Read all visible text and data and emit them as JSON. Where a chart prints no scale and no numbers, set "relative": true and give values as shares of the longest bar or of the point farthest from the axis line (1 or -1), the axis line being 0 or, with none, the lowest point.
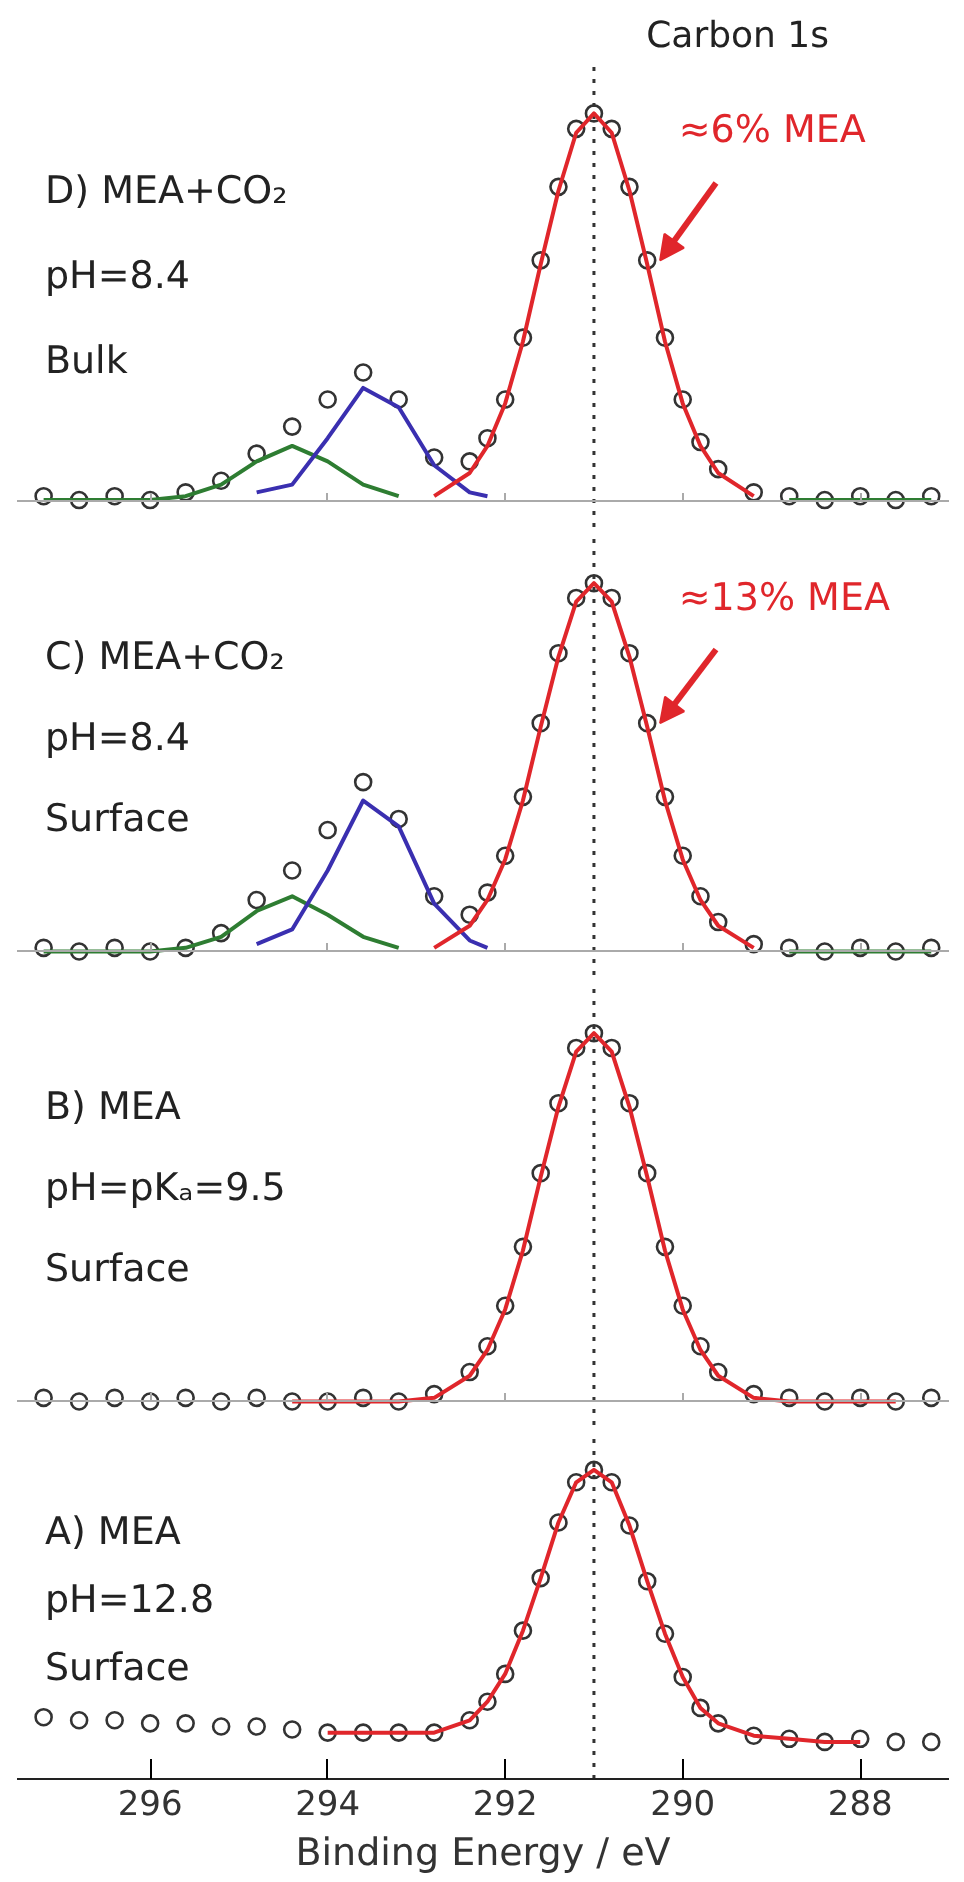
{
  "chart_data": [
    {
      "type": "line",
      "relative": true,
      "title": "Carbon 1s",
      "tick_labels": false,
      "xlim": [
        297.5,
        287
      ],
      "xticks": [
        296,
        294,
        292,
        290,
        288
      ],
      "x": [
        297.2,
        296.8,
        296.4,
        296.0,
        295.6,
        295.2,
        294.8,
        294.4,
        294.0,
        293.6,
        293.2,
        292.8,
        292.4,
        292.2,
        292.0,
        291.8,
        291.6,
        291.4,
        291.2,
        291.0,
        290.8,
        290.6,
        290.4,
        290.2,
        290.0,
        289.8,
        289.6,
        289.2,
        288.8,
        288.4,
        288.0,
        287.6,
        287.2
      ],
      "series": [
        {
          "type": "scatter",
          "marker": "circle",
          "color": "#333333",
          "values": [
            0.01,
            0,
            0.01,
            0,
            0.02,
            0.05,
            0.12,
            0.19,
            0.26,
            0.33,
            0.26,
            0.11,
            0.1,
            0.16,
            0.26,
            0.42,
            0.62,
            0.81,
            0.96,
            1,
            0.96,
            0.81,
            0.62,
            0.42,
            0.26,
            0.15,
            0.08,
            0.02,
            0.01,
            0,
            0.01,
            0,
            0.01
          ]
        },
        {
          "color": "#2e7d32",
          "values": [
            0,
            0,
            0,
            0,
            0.01,
            0.04,
            0.1,
            0.14,
            0.1,
            0.04,
            0.01,
            null,
            null,
            null,
            null,
            null,
            null,
            null,
            null,
            null,
            null,
            null,
            null,
            null,
            null,
            null,
            null,
            null,
            0,
            0,
            0,
            0,
            0
          ]
        },
        {
          "color": "#3a2fb0",
          "values": [
            null,
            null,
            null,
            null,
            null,
            null,
            0.02,
            0.04,
            0.16,
            0.29,
            0.24,
            0.09,
            0.02,
            0.01,
            null,
            null,
            null,
            null,
            null,
            null,
            null,
            null,
            null,
            null,
            null,
            null,
            null,
            null,
            null,
            null,
            null,
            null,
            null
          ]
        },
        {
          "color": "#e0262b",
          "values": [
            null,
            null,
            null,
            null,
            null,
            null,
            null,
            null,
            null,
            null,
            null,
            0.01,
            0.07,
            0.14,
            0.25,
            0.41,
            0.61,
            0.8,
            0.95,
            1,
            0.95,
            0.8,
            0.61,
            0.41,
            0.25,
            0.14,
            0.07,
            0.01,
            null,
            null,
            null,
            null,
            null
          ]
        }
      ],
      "ref_lines": [
        {
          "axis": "x",
          "value": 291,
          "line_style": "dotted",
          "color": "#333333"
        }
      ],
      "annotations": [
        "D) MEA+CO₂",
        "pH=8.4",
        "Bulk",
        "≈6% MEA"
      ]
    },
    {
      "type": "line",
      "relative": true,
      "tick_labels": false,
      "xlim": [
        297.5,
        287
      ],
      "xticks": [
        296,
        294,
        292,
        290,
        288
      ],
      "x": [
        297.2,
        296.8,
        296.4,
        296.0,
        295.6,
        295.2,
        294.8,
        294.4,
        294.0,
        293.6,
        293.2,
        292.8,
        292.4,
        292.2,
        292.0,
        291.8,
        291.6,
        291.4,
        291.2,
        291.0,
        290.8,
        290.6,
        290.4,
        290.2,
        290.0,
        289.8,
        289.6,
        289.2,
        288.8,
        288.4,
        288.0,
        287.6,
        287.2
      ],
      "series": [
        {
          "type": "scatter",
          "marker": "circle",
          "color": "#333333",
          "values": [
            0.01,
            0,
            0.01,
            0,
            0.01,
            0.05,
            0.14,
            0.22,
            0.33,
            0.46,
            0.36,
            0.15,
            0.1,
            0.16,
            0.26,
            0.42,
            0.62,
            0.81,
            0.96,
            1,
            0.96,
            0.81,
            0.62,
            0.42,
            0.26,
            0.15,
            0.08,
            0.02,
            0.01,
            0,
            0.01,
            0,
            0.01
          ]
        },
        {
          "color": "#2e7d32",
          "values": [
            0,
            0,
            0,
            0,
            0.01,
            0.04,
            0.11,
            0.15,
            0.1,
            0.04,
            0.01,
            null,
            null,
            null,
            null,
            null,
            null,
            null,
            null,
            null,
            null,
            null,
            null,
            null,
            null,
            null,
            null,
            null,
            0,
            0,
            0,
            0,
            0
          ]
        },
        {
          "color": "#3a2fb0",
          "values": [
            null,
            null,
            null,
            null,
            null,
            null,
            0.02,
            0.06,
            0.22,
            0.41,
            0.34,
            0.13,
            0.03,
            0.01,
            null,
            null,
            null,
            null,
            null,
            null,
            null,
            null,
            null,
            null,
            null,
            null,
            null,
            null,
            null,
            null,
            null,
            null,
            null
          ]
        },
        {
          "color": "#e0262b",
          "values": [
            null,
            null,
            null,
            null,
            null,
            null,
            null,
            null,
            null,
            null,
            null,
            0.01,
            0.07,
            0.14,
            0.25,
            0.41,
            0.61,
            0.8,
            0.95,
            1,
            0.95,
            0.8,
            0.61,
            0.41,
            0.25,
            0.14,
            0.07,
            0.01,
            null,
            null,
            null,
            null,
            null
          ]
        }
      ],
      "ref_lines": [
        {
          "axis": "x",
          "value": 291,
          "line_style": "dotted",
          "color": "#333333"
        }
      ],
      "annotations": [
        "C) MEA+CO₂",
        "pH=8.4",
        "Surface",
        "≈13% MEA"
      ]
    },
    {
      "type": "line",
      "relative": true,
      "tick_labels": false,
      "xlim": [
        297.5,
        287
      ],
      "xticks": [
        296,
        294,
        292,
        290,
        288
      ],
      "x": [
        297.2,
        296.8,
        296.4,
        296.0,
        295.6,
        295.2,
        294.8,
        294.4,
        294.0,
        293.6,
        293.2,
        292.8,
        292.4,
        292.2,
        292.0,
        291.8,
        291.6,
        291.4,
        291.2,
        291.0,
        290.8,
        290.6,
        290.4,
        290.2,
        290.0,
        289.8,
        289.6,
        289.2,
        288.8,
        288.4,
        288.0,
        287.6,
        287.2
      ],
      "series": [
        {
          "type": "scatter",
          "marker": "circle",
          "color": "#333333",
          "values": [
            0.01,
            0,
            0.01,
            0,
            0.01,
            0,
            0.01,
            0,
            0,
            0.01,
            0,
            0.02,
            0.08,
            0.15,
            0.26,
            0.42,
            0.62,
            0.81,
            0.96,
            1,
            0.96,
            0.81,
            0.62,
            0.42,
            0.26,
            0.15,
            0.08,
            0.02,
            0.01,
            0,
            0.01,
            0,
            0.01
          ]
        },
        {
          "color": "#e0262b",
          "values": [
            null,
            null,
            null,
            null,
            null,
            null,
            null,
            0,
            0,
            0,
            0,
            0.01,
            0.07,
            0.14,
            0.25,
            0.41,
            0.61,
            0.8,
            0.95,
            1,
            0.95,
            0.8,
            0.61,
            0.41,
            0.25,
            0.14,
            0.07,
            0.01,
            0,
            0,
            0,
            0,
            null
          ]
        }
      ],
      "ref_lines": [
        {
          "axis": "x",
          "value": 291,
          "line_style": "dotted",
          "color": "#333333"
        }
      ],
      "annotations": [
        "B) MEA",
        "pH=pKₐ=9.5",
        "Surface"
      ]
    },
    {
      "type": "line",
      "relative": true,
      "tick_labels": "x",
      "xlim": [
        297.5,
        287
      ],
      "xlabel": "Binding Energy / eV",
      "xticks": [
        296,
        294,
        292,
        290,
        288
      ],
      "x": [
        297.2,
        296.8,
        296.4,
        296.0,
        295.6,
        295.2,
        294.8,
        294.4,
        294.0,
        293.6,
        293.2,
        292.8,
        292.4,
        292.2,
        292.0,
        291.8,
        291.6,
        291.4,
        291.2,
        291.0,
        290.8,
        290.6,
        290.4,
        290.2,
        290.0,
        289.8,
        289.6,
        289.2,
        288.8,
        288.4,
        288.0,
        287.6,
        287.2
      ],
      "series": [
        {
          "type": "scatter",
          "marker": "circle",
          "color": "#333333",
          "values": [
            0.2,
            0.19,
            0.19,
            0.18,
            0.18,
            0.17,
            0.17,
            0.16,
            0.15,
            0.15,
            0.15,
            0.15,
            0.19,
            0.25,
            0.34,
            0.48,
            0.65,
            0.83,
            0.96,
            1,
            0.96,
            0.82,
            0.64,
            0.47,
            0.33,
            0.23,
            0.18,
            0.14,
            0.13,
            0.12,
            0.13,
            0.12,
            0.12
          ]
        },
        {
          "color": "#e0262b",
          "values": [
            null,
            null,
            null,
            null,
            null,
            null,
            null,
            null,
            0.15,
            0.15,
            0.15,
            0.15,
            0.19,
            0.25,
            0.34,
            0.48,
            0.65,
            0.83,
            0.96,
            1,
            0.96,
            0.82,
            0.64,
            0.47,
            0.33,
            0.23,
            0.18,
            0.14,
            0.13,
            0.12,
            0.12,
            null,
            null
          ]
        }
      ],
      "ref_lines": [
        {
          "axis": "x",
          "value": 291,
          "line_style": "dotted",
          "color": "#333333"
        }
      ],
      "annotations": [
        "A) MEA",
        "pH=12.8",
        "Surface"
      ]
    }
  ]
}
